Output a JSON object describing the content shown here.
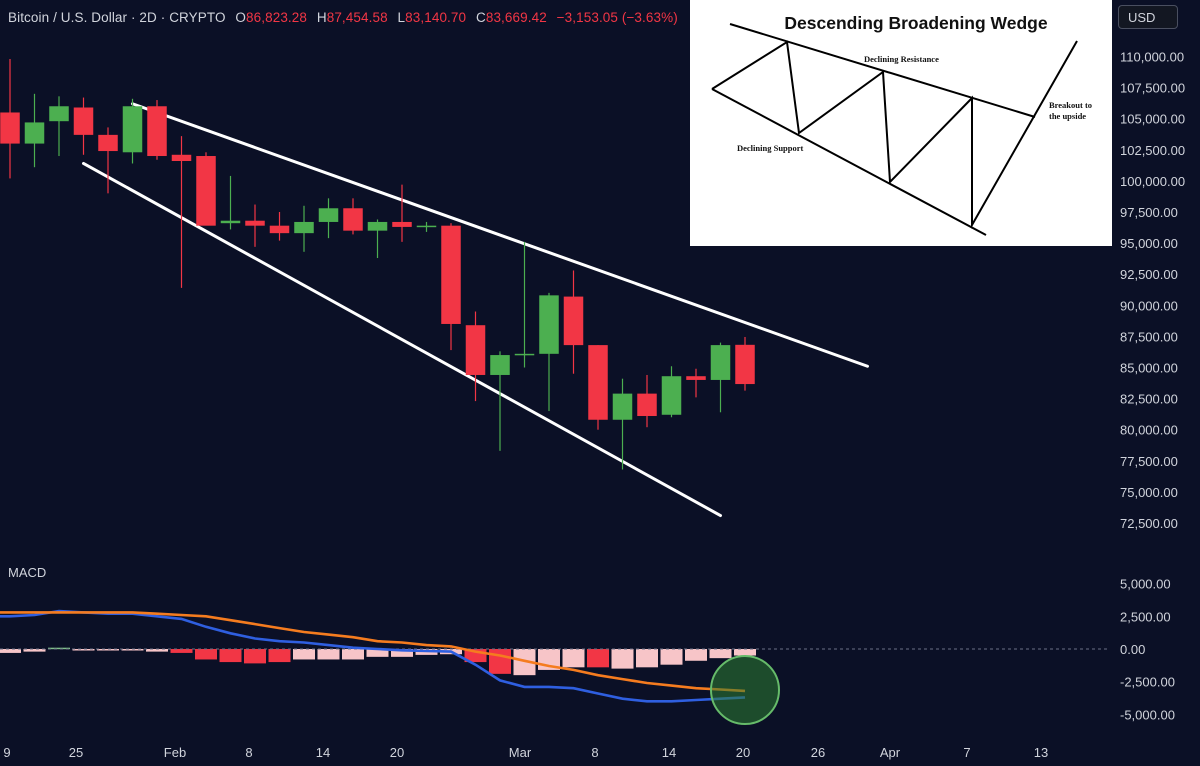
{
  "header": {
    "symbol": "Bitcoin / U.S. Dollar · 2D · CRYPTO",
    "open_label": "O",
    "open_value": "86,823.28",
    "high_label": "H",
    "high_value": "87,454.58",
    "low_label": "L",
    "low_value": "83,140.70",
    "close_label": "C",
    "close_value": "83,669.42",
    "change": "−3,153.05 (−3.63%)",
    "change_color": "#f23645"
  },
  "currency_badge": "USD",
  "macd_label": "MACD",
  "inset": {
    "title": "Descending Broadening Wedge",
    "declining_resistance": "Declining Resistance",
    "declining_support": "Declining Support",
    "breakout_line1": "Breakout to",
    "breakout_line2": "the upside"
  },
  "colors": {
    "background": "#0b1026",
    "up_candle": "#4caf50",
    "down_candle": "#f23645",
    "macd_line": "#2f5fe0",
    "signal_line": "#f57c1f",
    "hist_strong_neg": "#f23645",
    "hist_weak_neg": "#f7c5c8",
    "trendline": "#ffffff",
    "highlight_circle": "#4caf50"
  },
  "chart_data": [
    {
      "type": "candlestick",
      "title": "",
      "series_name": "Bitcoin / U.S. Dollar",
      "x_tick_labels": [
        "9",
        "25",
        "Feb",
        "8",
        "14",
        "20",
        "Mar",
        "8",
        "14",
        "20",
        "26",
        "Apr",
        "7",
        "13"
      ],
      "y_tick_labels": [
        "110,000.00",
        "107,500.00",
        "105,000.00",
        "102,500.00",
        "100,000.00",
        "97,500.00",
        "95,000.00",
        "92,500.00",
        "90,000.00",
        "87,500.00",
        "85,000.00",
        "82,500.00",
        "80,000.00",
        "77,500.00",
        "75,000.00",
        "72,500.00"
      ],
      "ylim": [
        72500,
        110000
      ],
      "candles": [
        {
          "o": 105500,
          "h": 109800,
          "l": 100200,
          "c": 103000
        },
        {
          "o": 103000,
          "h": 107000,
          "l": 101100,
          "c": 104700
        },
        {
          "o": 104800,
          "h": 106800,
          "l": 102000,
          "c": 106000
        },
        {
          "o": 105900,
          "h": 106700,
          "l": 102100,
          "c": 103700
        },
        {
          "o": 103700,
          "h": 104300,
          "l": 99000,
          "c": 102400
        },
        {
          "o": 102300,
          "h": 106600,
          "l": 101400,
          "c": 106000
        },
        {
          "o": 106000,
          "h": 106500,
          "l": 101700,
          "c": 102000
        },
        {
          "o": 102100,
          "h": 103600,
          "l": 91400,
          "c": 101600
        },
        {
          "o": 102000,
          "h": 102300,
          "l": 96600,
          "c": 96400
        },
        {
          "o": 96600,
          "h": 100400,
          "l": 96100,
          "c": 96800
        },
        {
          "o": 96800,
          "h": 98100,
          "l": 94700,
          "c": 96400
        },
        {
          "o": 96400,
          "h": 97500,
          "l": 95200,
          "c": 95800
        },
        {
          "o": 95800,
          "h": 98000,
          "l": 94300,
          "c": 96700
        },
        {
          "o": 96700,
          "h": 98600,
          "l": 95400,
          "c": 97800
        },
        {
          "o": 97800,
          "h": 98600,
          "l": 95700,
          "c": 96000
        },
        {
          "o": 96000,
          "h": 96900,
          "l": 93800,
          "c": 96700
        },
        {
          "o": 96700,
          "h": 99700,
          "l": 95100,
          "c": 96300
        },
        {
          "o": 96300,
          "h": 96700,
          "l": 95900,
          "c": 96400
        },
        {
          "o": 96400,
          "h": 96600,
          "l": 86400,
          "c": 88500
        },
        {
          "o": 88400,
          "h": 89500,
          "l": 82300,
          "c": 84400
        },
        {
          "o": 84400,
          "h": 86300,
          "l": 78300,
          "c": 86000
        },
        {
          "o": 86000,
          "h": 95100,
          "l": 85000,
          "c": 86100
        },
        {
          "o": 86100,
          "h": 91000,
          "l": 81500,
          "c": 90800
        },
        {
          "o": 90700,
          "h": 92800,
          "l": 84500,
          "c": 86800
        },
        {
          "o": 86800,
          "h": 86800,
          "l": 80000,
          "c": 80800
        },
        {
          "o": 80800,
          "h": 84100,
          "l": 76800,
          "c": 82900
        },
        {
          "o": 82900,
          "h": 84400,
          "l": 80200,
          "c": 81100
        },
        {
          "o": 81200,
          "h": 85100,
          "l": 81000,
          "c": 84300
        },
        {
          "o": 84300,
          "h": 84900,
          "l": 82600,
          "c": 84000
        },
        {
          "o": 84000,
          "h": 87000,
          "l": 81400,
          "c": 86800
        },
        {
          "o": 86823.28,
          "h": 87454.58,
          "l": 83140.7,
          "c": 83669.42
        }
      ],
      "annotations": [
        {
          "name": "declining-resistance-line",
          "from": {
            "candle": 5,
            "price": 106200
          },
          "to": {
            "candle": 35,
            "price": 85100
          }
        },
        {
          "name": "declining-support-line",
          "from": {
            "candle": 3,
            "price": 101400
          },
          "to": {
            "candle": 29,
            "price": 73100
          }
        }
      ]
    },
    {
      "type": "line",
      "title": "MACD",
      "y_tick_labels": [
        "5,000.00",
        "2,500.00",
        "0.00",
        "-2,500.00",
        "-5,000.00"
      ],
      "ylim": [
        -5000,
        5000
      ],
      "series": [
        {
          "name": "",
          "role": "macd",
          "values": [
            2500,
            2600,
            2900,
            2800,
            2700,
            2700,
            2500,
            2300,
            1700,
            1200,
            800,
            600,
            500,
            300,
            100,
            0,
            -100,
            -150,
            -200,
            -1200,
            -2400,
            -2900,
            -2900,
            -3000,
            -3400,
            -3800,
            -4000,
            -4000,
            -3900,
            -3800,
            -3700
          ]
        },
        {
          "name": "",
          "role": "signal",
          "values": [
            2800,
            2800,
            2800,
            2800,
            2800,
            2800,
            2700,
            2600,
            2500,
            2200,
            1900,
            1600,
            1300,
            1100,
            900,
            600,
            500,
            300,
            200,
            -200,
            -500,
            -900,
            -1300,
            -1600,
            -2000,
            -2300,
            -2600,
            -2800,
            -3000,
            -3100,
            -3200
          ]
        }
      ],
      "histogram": [
        -300,
        -200,
        100,
        0,
        -100,
        -100,
        -200,
        -300,
        -800,
        -1000,
        -1100,
        -1000,
        -800,
        -800,
        -800,
        -600,
        -600,
        -450,
        -400,
        -1000,
        -1900,
        -2000,
        -1600,
        -1400,
        -1400,
        -1500,
        -1400,
        -1200,
        -900,
        -700,
        -500
      ]
    }
  ]
}
